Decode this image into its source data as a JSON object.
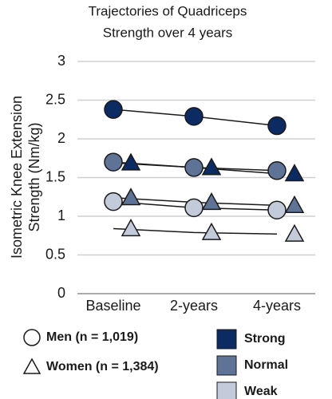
{
  "chart_data": {
    "type": "line",
    "title": [
      "Trajectories of Quadriceps",
      "Strength over 4 years"
    ],
    "y_label": [
      "Isometric Knee Extension",
      "Strength (Nm/kg)"
    ],
    "categories": [
      "Baseline",
      "2-years",
      "4-years"
    ],
    "ylim": [
      0,
      3
    ],
    "yticks": [
      0,
      0.5,
      1,
      1.5,
      2,
      2.5,
      3
    ],
    "grid": true,
    "levels": [
      {
        "name": "Strong",
        "color": "#0d2b63"
      },
      {
        "name": "Normal",
        "color": "#5f7396"
      },
      {
        "name": "Weak",
        "color": "#c3cad9"
      }
    ],
    "groups": [
      {
        "label": "Men (n = 1,019)",
        "marker": "circle",
        "values": [
          [
            2.38,
            2.29,
            2.17
          ],
          [
            1.7,
            1.63,
            1.59
          ],
          [
            1.19,
            1.11,
            1.08
          ]
        ]
      },
      {
        "label": "Women (n = 1,384)",
        "marker": "triangle",
        "values": [
          [
            1.69,
            1.63,
            1.55
          ],
          [
            1.24,
            1.18,
            1.14
          ],
          [
            0.84,
            0.79,
            0.77
          ]
        ]
      }
    ]
  }
}
